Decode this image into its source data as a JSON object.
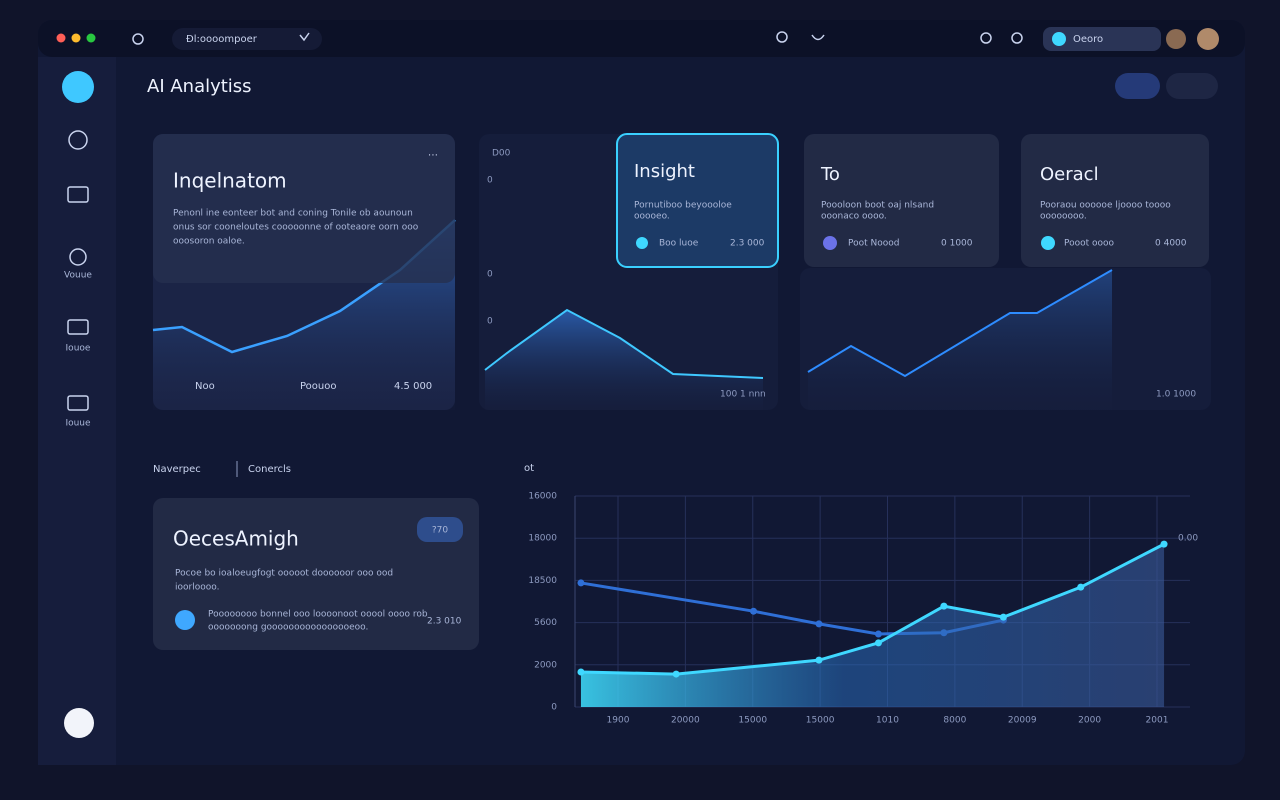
{
  "topbar": {
    "address": "Ðl:oooompoer",
    "user_chip": "Oeoro"
  },
  "sidebar": {
    "items": [
      "Vouue",
      "Iouoe",
      "Iouue"
    ]
  },
  "page_title": "AI Analytiss",
  "cards": [
    {
      "title": "Inqelnatom",
      "text": [
        "Penonl ine eonteer bot and coning Tonile ob aounoun",
        "onus sor cooneloutes cooooonne of ooteaore oorn ooo",
        "ooosoron oaloe."
      ],
      "footer": [
        "Noo",
        "Poouoo",
        "4.5 000"
      ]
    },
    {
      "tick_labels": [
        "D00",
        "0",
        "0",
        "0"
      ],
      "footnote": "100 1 nnn"
    },
    {
      "title": "Insight",
      "text": [
        "Pornutiboo beyoooloe",
        "ooooeo."
      ],
      "chip": "Boo luoe",
      "value": "2.3 000"
    },
    {
      "title": "To",
      "text": [
        "Poooloon boot oaj nlsand",
        "ooonaco oooo."
      ],
      "chip": "Poot Noood",
      "value": "0 1000"
    },
    {
      "title": "Oeracl",
      "text": [
        "Pooraou oooooe ljoooo toooo",
        "oooooooo."
      ],
      "chip": "Pooot oooo",
      "value": "0 4000"
    },
    {
      "footnote": "1.0 1000"
    }
  ],
  "section": {
    "left_title": "Naverpec",
    "right_title": "Conercls",
    "chart_title": "ot"
  },
  "detail_card": {
    "title": "OecesAmigh",
    "badge": "?70",
    "text": [
      "Pocoe bo ioaloeugfogt ooooot doooooor ooo ood",
      "ioorloooo."
    ],
    "note": [
      "Poooooooo bonnel ooo loooonoot ooool oooo rob",
      "ooooooong goooooooooooooooeoo."
    ],
    "value": "2.3 010"
  },
  "chart_data": {
    "type": "line",
    "y_labels": [
      "0",
      "2000",
      "5600",
      "18500",
      "18000",
      "16000"
    ],
    "x_labels": [
      "1900",
      "20000",
      "15000",
      "15000",
      "1010",
      "8000",
      "20009",
      "2000",
      "2001"
    ],
    "end_label": "0.00",
    "xlim": [
      0,
      100
    ],
    "ylim": [
      0,
      5
    ],
    "series": [
      {
        "color": "#2f6fd6",
        "x": [
          1,
          30,
          41,
          51,
          62,
          72
        ],
        "values": [
          2.94,
          2.27,
          1.97,
          1.73,
          1.76,
          2.06
        ]
      },
      {
        "color": "#3fd8ff",
        "x": [
          1,
          17,
          41,
          51,
          62,
          72,
          85,
          99
        ],
        "values": [
          0.83,
          0.78,
          1.11,
          1.52,
          2.39,
          2.13,
          2.84,
          3.86
        ]
      }
    ]
  }
}
